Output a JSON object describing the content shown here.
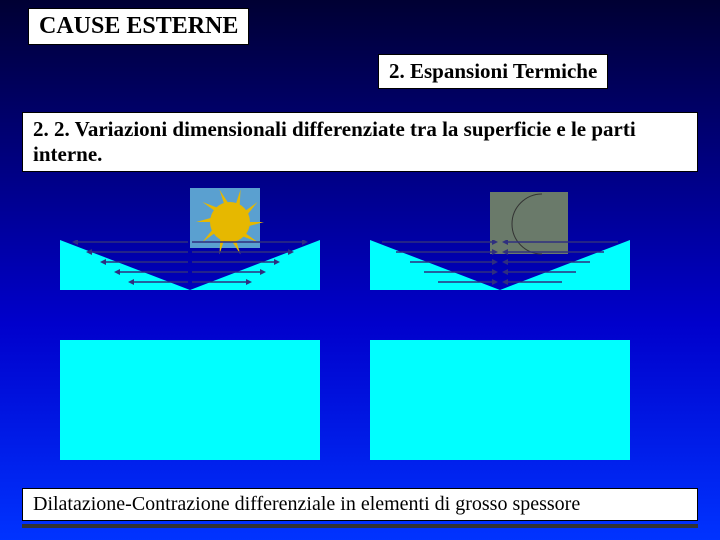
{
  "colors": {
    "box_bg": "#ffffff",
    "box_border": "#000000",
    "text": "#000000",
    "block_fill": "#00ffff",
    "arrow_color": "#2f2f7f",
    "sun_body": "#e6b800",
    "sun_bg": "#5aa0d0",
    "moon_body": "#f0e08a",
    "moon_bg": "#6a7a6a"
  },
  "title": "CAUSE ESTERNE",
  "subtitle": "2. Espansioni Termiche",
  "description": "2. 2. Variazioni dimensionali differenziate tra la superficie e le parti interne.",
  "caption": "Dilatazione-Contrazione differenziale in elementi di grosso spessore",
  "diagrams": {
    "left": {
      "icon": "sun",
      "arrow_direction": "outward",
      "rows": [
        {
          "y": 0,
          "half": 118
        },
        {
          "y": 10,
          "half": 104
        },
        {
          "y": 20,
          "half": 90
        },
        {
          "y": 30,
          "half": 76
        },
        {
          "y": 40,
          "half": 62
        }
      ]
    },
    "right": {
      "icon": "moon",
      "arrow_direction": "inward",
      "rows": [
        {
          "y": 0,
          "half": 118
        },
        {
          "y": 10,
          "half": 104
        },
        {
          "y": 20,
          "half": 90
        },
        {
          "y": 30,
          "half": 76
        },
        {
          "y": 40,
          "half": 62
        }
      ]
    }
  }
}
